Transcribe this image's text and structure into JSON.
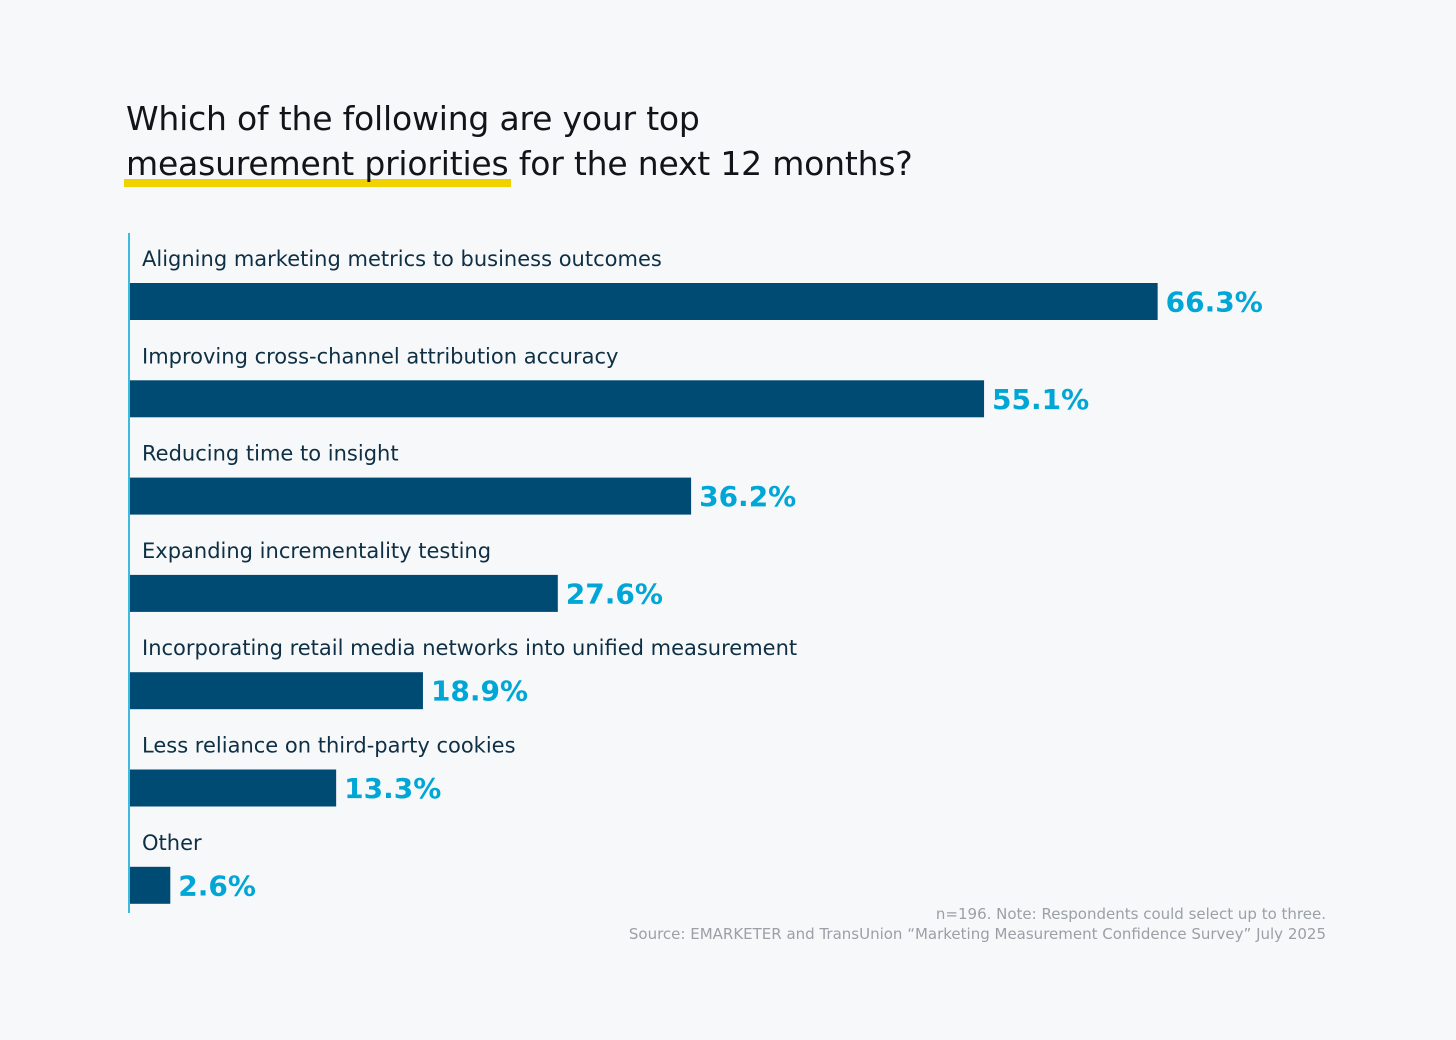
{
  "title": {
    "line1": "Which of the following are your top",
    "highlight": "measurement priorities",
    "line2_rest": " for the next 12 months?"
  },
  "chart_data": {
    "type": "bar",
    "orientation": "horizontal",
    "categories": [
      "Aligning marketing metrics to business outcomes",
      "Improving cross-channel attribution accuracy",
      "Reducing time to insight",
      "Expanding incrementality testing",
      "Incorporating retail media networks into unified measurement",
      "Less reliance on third-party cookies",
      "Other"
    ],
    "values": [
      66.3,
      55.1,
      36.2,
      27.6,
      18.9,
      13.3,
      2.6
    ],
    "value_labels": [
      "66.3%",
      "55.1%",
      "36.2%",
      "27.6%",
      "18.9%",
      "13.3%",
      "2.6%"
    ],
    "unit": "%",
    "xlim": [
      0,
      100
    ],
    "title": "Which of the following are your top measurement priorities for the next 12 months?",
    "xlabel": "",
    "ylabel": ""
  },
  "colors": {
    "bar": "#004b73",
    "value_label": "#00a6d6",
    "category_label": "#0e2f44",
    "axis": "#00a6d6",
    "highlight": "#f2d100"
  },
  "footer": {
    "note": "n=196. Note: Respondents could select up to three.",
    "source": "Source: EMARKETER and TransUnion “Marketing Measurement Confidence Survey” July 2025"
  }
}
